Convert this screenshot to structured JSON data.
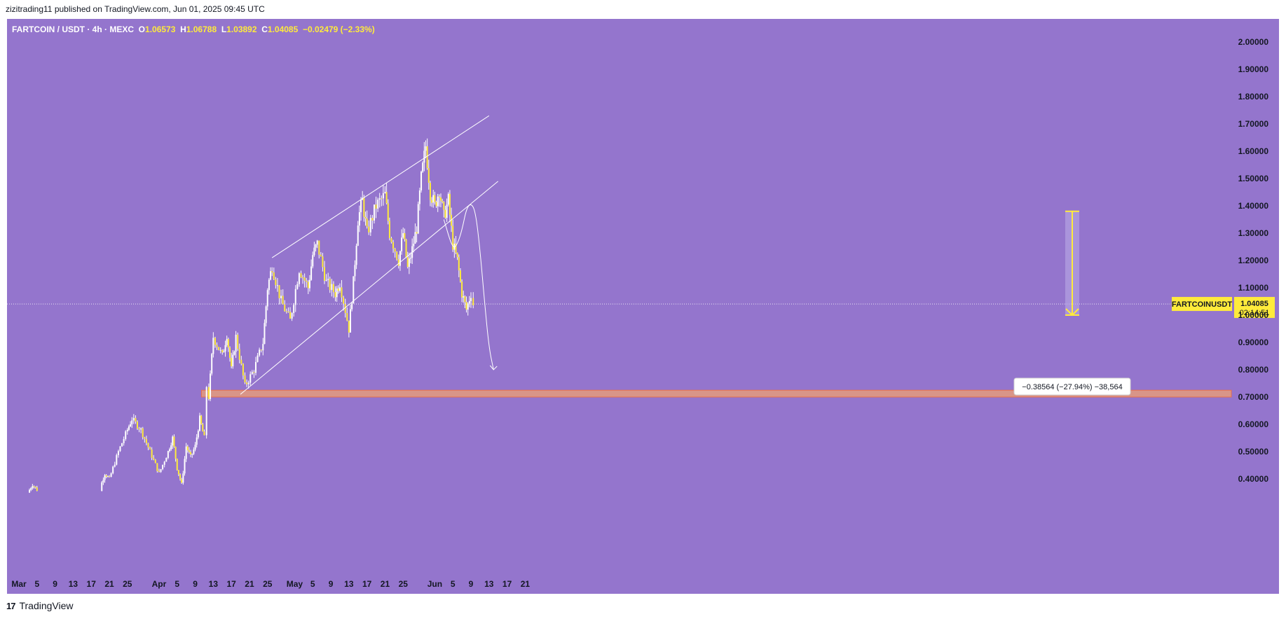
{
  "header": {
    "published": "zizitrading11 published on TradingView.com, Jun 01, 2025 09:45 UTC"
  },
  "symbol_bar": {
    "symbol": "FARTCOIN / USDT · 4h · MEXC",
    "open_label": "O",
    "open": "1.06573",
    "high_label": "H",
    "high": "1.06788",
    "low_label": "L",
    "low": "1.03892",
    "close_label": "C",
    "close": "1.04085",
    "change": "−0.02479 (−2.33%)"
  },
  "price_label": {
    "symbol": "FARTCOINUSDT",
    "price": "1.04085",
    "countdown": "02:14:51"
  },
  "measure": {
    "text": "−0.38564 (−27.94%) −38,564",
    "from": 1.38,
    "to": 1.0
  },
  "footer": {
    "brand": "TradingView"
  },
  "colors": {
    "background": "#9475cd",
    "candles": "#ffeb3b",
    "wick": "#ffffff",
    "zone": "#f0a070",
    "measure": "#ffeb3b",
    "lines": "#ffffff"
  },
  "chart_data": {
    "type": "candlestick",
    "title": "FARTCOIN / USDT · 4h · MEXC",
    "ylim": [
      0.37,
      2.05
    ],
    "y_ticks": [
      "2.00000",
      "1.90000",
      "1.80000",
      "1.70000",
      "1.60000",
      "1.50000",
      "1.40000",
      "1.30000",
      "1.20000",
      "1.10000",
      "1.00000",
      "0.90000",
      "0.80000",
      "0.70000",
      "0.60000",
      "0.50000",
      "0.40000"
    ],
    "y_tick_values": [
      2.0,
      1.9,
      1.8,
      1.7,
      1.6,
      1.5,
      1.4,
      1.3,
      1.2,
      1.1,
      1.0,
      0.9,
      0.8,
      0.7,
      0.6,
      0.5,
      0.4
    ],
    "x_ticks": [
      "Mar",
      "5",
      "9",
      "13",
      "17",
      "21",
      "25",
      "Apr",
      "5",
      "9",
      "13",
      "17",
      "21",
      "25",
      "May",
      "5",
      "9",
      "13",
      "17",
      "21",
      "25",
      "Jun",
      "5",
      "9",
      "13",
      "17",
      "21"
    ],
    "x_tick_dates": [
      "2025-03-01",
      "2025-03-05",
      "2025-03-09",
      "2025-03-13",
      "2025-03-17",
      "2025-03-21",
      "2025-03-25",
      "2025-04-01",
      "2025-04-05",
      "2025-04-09",
      "2025-04-13",
      "2025-04-17",
      "2025-04-21",
      "2025-04-25",
      "2025-05-01",
      "2025-05-05",
      "2025-05-09",
      "2025-05-13",
      "2025-05-17",
      "2025-05-21",
      "2025-05-25",
      "2025-06-01",
      "2025-06-05",
      "2025-06-09",
      "2025-06-13",
      "2025-06-17",
      "2025-06-21"
    ],
    "price_path": [
      [
        "2025-03-03",
        0.35
      ],
      [
        "2025-03-04",
        0.38
      ],
      [
        "2025-03-05",
        0.36
      ],
      [
        "2025-03-19",
        0.37
      ],
      [
        "2025-03-20",
        0.42
      ],
      [
        "2025-03-21",
        0.4
      ],
      [
        "2025-03-23",
        0.5
      ],
      [
        "2025-03-25",
        0.58
      ],
      [
        "2025-03-26",
        0.62
      ],
      [
        "2025-03-28",
        0.58
      ],
      [
        "2025-03-30",
        0.5
      ],
      [
        "2025-04-01",
        0.42
      ],
      [
        "2025-04-03",
        0.5
      ],
      [
        "2025-04-04",
        0.55
      ],
      [
        "2025-04-05",
        0.44
      ],
      [
        "2025-04-06",
        0.38
      ],
      [
        "2025-04-07",
        0.52
      ],
      [
        "2025-04-08",
        0.48
      ],
      [
        "2025-04-09",
        0.52
      ],
      [
        "2025-04-10",
        0.62
      ],
      [
        "2025-04-11",
        0.55
      ],
      [
        "2025-04-11T12",
        0.74
      ],
      [
        "2025-04-12",
        0.7
      ],
      [
        "2025-04-13",
        0.92
      ],
      [
        "2025-04-15",
        0.85
      ],
      [
        "2025-04-16",
        0.93
      ],
      [
        "2025-04-17",
        0.8
      ],
      [
        "2025-04-18",
        0.92
      ],
      [
        "2025-04-20",
        0.74
      ],
      [
        "2025-04-22",
        0.8
      ],
      [
        "2025-04-24",
        0.9
      ],
      [
        "2025-04-25",
        1.1
      ],
      [
        "2025-04-26",
        1.18
      ],
      [
        "2025-04-28",
        1.05
      ],
      [
        "2025-04-30",
        0.98
      ],
      [
        "2025-05-02",
        1.17
      ],
      [
        "2025-05-04",
        1.1
      ],
      [
        "2025-05-05",
        1.22
      ],
      [
        "2025-05-06",
        1.26
      ],
      [
        "2025-05-08",
        1.12
      ],
      [
        "2025-05-10",
        1.08
      ],
      [
        "2025-05-11",
        1.12
      ],
      [
        "2025-05-13",
        0.95
      ],
      [
        "2025-05-14",
        1.12
      ],
      [
        "2025-05-15",
        1.35
      ],
      [
        "2025-05-16",
        1.42
      ],
      [
        "2025-05-17",
        1.3
      ],
      [
        "2025-05-19",
        1.4
      ],
      [
        "2025-05-21",
        1.44
      ],
      [
        "2025-05-22",
        1.3
      ],
      [
        "2025-05-24",
        1.2
      ],
      [
        "2025-05-25",
        1.3
      ],
      [
        "2025-05-26",
        1.17
      ],
      [
        "2025-05-27",
        1.24
      ],
      [
        "2025-05-28",
        1.32
      ],
      [
        "2025-05-29",
        1.5
      ],
      [
        "2025-05-30",
        1.62
      ],
      [
        "2025-05-31",
        1.45
      ],
      [
        "2025-06-01",
        1.4
      ],
      [
        "2025-06-02",
        1.46
      ],
      [
        "2025-06-03",
        1.36
      ],
      [
        "2025-06-04",
        1.42
      ],
      [
        "2025-06-05",
        1.26
      ],
      [
        "2025-06-06",
        1.2
      ],
      [
        "2025-06-07",
        1.08
      ],
      [
        "2025-06-08",
        1.02
      ],
      [
        "2025-06-09",
        1.08
      ],
      [
        "2025-06-09T12",
        1.04
      ]
    ],
    "last_price": 1.04085,
    "support_zone": {
      "low": 0.7,
      "high": 0.725
    },
    "channel": {
      "upper": [
        [
          "2025-04-26",
          1.21
        ],
        [
          "2025-06-13",
          1.73
        ]
      ],
      "lower": [
        [
          "2025-04-19",
          0.71
        ],
        [
          "2025-06-15",
          1.49
        ]
      ]
    },
    "projection": [
      [
        "2025-06-03",
        1.35
      ],
      [
        "2025-06-05",
        1.24
      ],
      [
        "2025-06-06",
        1.26
      ],
      [
        "2025-06-07",
        1.31
      ],
      [
        "2025-06-08",
        1.39
      ],
      [
        "2025-06-09",
        1.41
      ],
      [
        "2025-06-10",
        1.38
      ],
      [
        "2025-06-11",
        1.24
      ],
      [
        "2025-06-12",
        1.05
      ],
      [
        "2025-06-13",
        0.88
      ],
      [
        "2025-06-14",
        0.8
      ]
    ]
  }
}
